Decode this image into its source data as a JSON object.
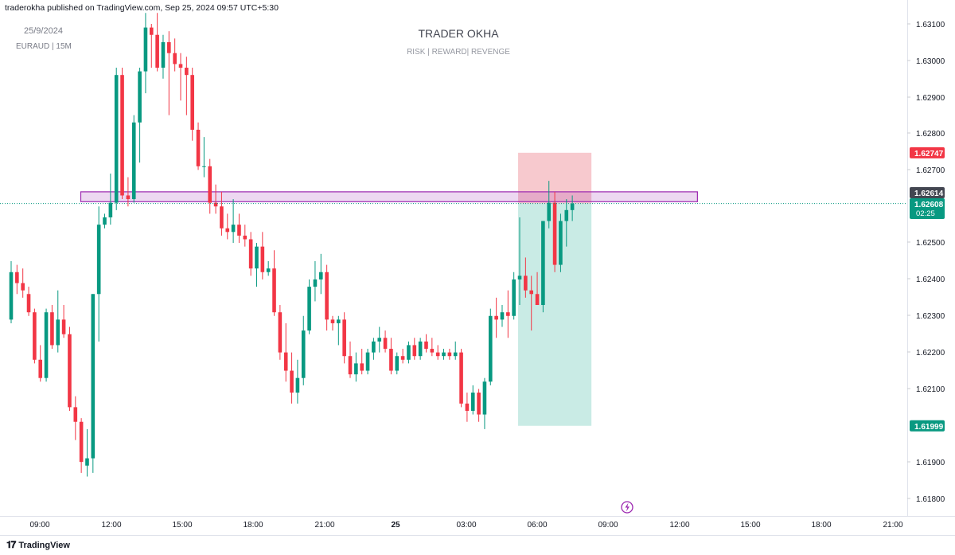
{
  "header": {
    "published_line": "traderokha published on TradingView.com, Sep 25, 2024 09:57 UTC+5:30"
  },
  "watermark": {
    "date": "25/9/2024",
    "symbol": "EURAUD | 15M",
    "title": "TRADER OKHA",
    "subtitle": "RISK | REWARD| REVENGE"
  },
  "footer": {
    "brand": "TradingView",
    "logo_icon": "tradingview-logo-icon"
  },
  "chart_data": {
    "type": "candlestick",
    "symbol": "EURAUD",
    "timeframe": "15M",
    "y_ticks": [
      "1.63100",
      "1.63000",
      "1.62900",
      "1.62800",
      "1.62700",
      "1.62500",
      "1.62400",
      "1.62300",
      "1.62200",
      "1.62100",
      "1.61900",
      "1.61800"
    ],
    "ylim": [
      1.6172,
      1.6313
    ],
    "x_ticks": [
      "09:00",
      "12:00",
      "15:00",
      "18:00",
      "21:00",
      "25",
      "03:00",
      "06:00",
      "09:00",
      "12:00",
      "15:00",
      "18:00",
      "21:00"
    ],
    "bar_interval_minutes": 15,
    "colors": {
      "up": "#089981",
      "down": "#f23645",
      "zone": "#9c27b0",
      "risk": "#f7c9ce",
      "reward": "#c9ebe5"
    },
    "price_labels": [
      {
        "text": "1.62747",
        "value": 1.62747,
        "color": "#f23645"
      },
      {
        "text": "1.62614",
        "value": 1.62614,
        "color": "#434651"
      },
      {
        "text": "1.62608",
        "value": 1.62608,
        "color": "#089981",
        "sub": "02:25"
      },
      {
        "text": "1.61999",
        "value": 1.61999,
        "color": "#089981"
      }
    ],
    "zone": {
      "top": 1.6264,
      "bottom": 1.62613,
      "start_bar": 13,
      "end_bar": 117
    },
    "position": {
      "type": "short",
      "entry": 1.62608,
      "stop": 1.62747,
      "target": 1.61999,
      "start_bar": 87,
      "end_bar": 99
    },
    "last_price": 1.62608,
    "candles": [
      [
        1.6229,
        1.6245,
        1.6228,
        1.6242
      ],
      [
        1.6242,
        1.6244,
        1.6236,
        1.6239
      ],
      [
        1.6239,
        1.6243,
        1.6235,
        1.6237
      ],
      [
        1.6236,
        1.6238,
        1.623,
        1.6231
      ],
      [
        1.6231,
        1.6232,
        1.6217,
        1.6218
      ],
      [
        1.6218,
        1.6222,
        1.6212,
        1.6213
      ],
      [
        1.6213,
        1.6232,
        1.6212,
        1.6231
      ],
      [
        1.6231,
        1.6233,
        1.6221,
        1.6222
      ],
      [
        1.6222,
        1.6237,
        1.622,
        1.6229
      ],
      [
        1.6229,
        1.6233,
        1.6224,
        1.6225
      ],
      [
        1.6225,
        1.6227,
        1.6204,
        1.6205
      ],
      [
        1.6205,
        1.6208,
        1.6196,
        1.6201
      ],
      [
        1.6201,
        1.6202,
        1.6187,
        1.619
      ],
      [
        1.6189,
        1.6199,
        1.6186,
        1.6191
      ],
      [
        1.6191,
        1.6236,
        1.6187,
        1.6236
      ],
      [
        1.6236,
        1.626,
        1.6223,
        1.6255
      ],
      [
        1.6255,
        1.6258,
        1.6254,
        1.6257
      ],
      [
        1.6257,
        1.6269,
        1.6255,
        1.6261
      ],
      [
        1.6261,
        1.6298,
        1.6259,
        1.6296
      ],
      [
        1.6296,
        1.6298,
        1.6262,
        1.6263
      ],
      [
        1.6263,
        1.6268,
        1.626,
        1.6262
      ],
      [
        1.6262,
        1.6285,
        1.6261,
        1.6283
      ],
      [
        1.6283,
        1.6298,
        1.6272,
        1.6297
      ],
      [
        1.6297,
        1.6313,
        1.6291,
        1.6309
      ],
      [
        1.6309,
        1.631,
        1.6298,
        1.6307
      ],
      [
        1.6307,
        1.6313,
        1.6297,
        1.6298
      ],
      [
        1.6298,
        1.6307,
        1.6295,
        1.6305
      ],
      [
        1.6305,
        1.6308,
        1.6285,
        1.6302
      ],
      [
        1.6302,
        1.6306,
        1.6297,
        1.6299
      ],
      [
        1.6299,
        1.6302,
        1.6289,
        1.6298
      ],
      [
        1.6298,
        1.6301,
        1.6285,
        1.6296
      ],
      [
        1.6296,
        1.6298,
        1.6278,
        1.6281
      ],
      [
        1.6281,
        1.6283,
        1.627,
        1.6271
      ],
      [
        1.6271,
        1.6279,
        1.6268,
        1.6271
      ],
      [
        1.6271,
        1.6273,
        1.6258,
        1.6261
      ],
      [
        1.6261,
        1.6266,
        1.6258,
        1.626
      ],
      [
        1.626,
        1.6264,
        1.6252,
        1.6254
      ],
      [
        1.6254,
        1.6258,
        1.6251,
        1.6253
      ],
      [
        1.6253,
        1.6262,
        1.625,
        1.6255
      ],
      [
        1.6255,
        1.6258,
        1.625,
        1.6252
      ],
      [
        1.6252,
        1.6255,
        1.6249,
        1.6251
      ],
      [
        1.6251,
        1.6253,
        1.6241,
        1.6243
      ],
      [
        1.6243,
        1.625,
        1.6238,
        1.6249
      ],
      [
        1.6249,
        1.6253,
        1.624,
        1.6242
      ],
      [
        1.6242,
        1.6245,
        1.6241,
        1.6243
      ],
      [
        1.6243,
        1.6248,
        1.623,
        1.6231
      ],
      [
        1.6231,
        1.6233,
        1.6218,
        1.622
      ],
      [
        1.622,
        1.6228,
        1.6212,
        1.6215
      ],
      [
        1.6215,
        1.622,
        1.6206,
        1.6209
      ],
      [
        1.6209,
        1.6218,
        1.6206,
        1.6213
      ],
      [
        1.6213,
        1.623,
        1.6211,
        1.6226
      ],
      [
        1.6226,
        1.624,
        1.6225,
        1.6238
      ],
      [
        1.6238,
        1.6245,
        1.6234,
        1.624
      ],
      [
        1.624,
        1.6247,
        1.6236,
        1.6242
      ],
      [
        1.6242,
        1.6244,
        1.6226,
        1.6229
      ],
      [
        1.6229,
        1.623,
        1.6226,
        1.6228
      ],
      [
        1.6228,
        1.623,
        1.6222,
        1.6229
      ],
      [
        1.6229,
        1.6231,
        1.6217,
        1.6219
      ],
      [
        1.6219,
        1.6223,
        1.6213,
        1.6214
      ],
      [
        1.6214,
        1.622,
        1.6212,
        1.6217
      ],
      [
        1.6217,
        1.6221,
        1.6214,
        1.6215
      ],
      [
        1.6215,
        1.6221,
        1.6214,
        1.622
      ],
      [
        1.622,
        1.6224,
        1.6218,
        1.6223
      ],
      [
        1.6223,
        1.6227,
        1.622,
        1.6224
      ],
      [
        1.6224,
        1.6226,
        1.622,
        1.6221
      ],
      [
        1.6221,
        1.6224,
        1.6214,
        1.6215
      ],
      [
        1.6215,
        1.622,
        1.6214,
        1.6219
      ],
      [
        1.6219,
        1.6221,
        1.6217,
        1.6218
      ],
      [
        1.6218,
        1.6223,
        1.6217,
        1.6222
      ],
      [
        1.6222,
        1.6224,
        1.6218,
        1.6219
      ],
      [
        1.6219,
        1.6224,
        1.6218,
        1.6223
      ],
      [
        1.6223,
        1.6225,
        1.622,
        1.6221
      ],
      [
        1.6221,
        1.6224,
        1.6219,
        1.622
      ],
      [
        1.622,
        1.6222,
        1.6218,
        1.6219
      ],
      [
        1.6219,
        1.6221,
        1.6218,
        1.622
      ],
      [
        1.622,
        1.6221,
        1.6218,
        1.6219
      ],
      [
        1.6219,
        1.6223,
        1.6218,
        1.622
      ],
      [
        1.622,
        1.6221,
        1.6205,
        1.6206
      ],
      [
        1.6206,
        1.6209,
        1.6201,
        1.6204
      ],
      [
        1.6204,
        1.6211,
        1.6203,
        1.6209
      ],
      [
        1.6209,
        1.621,
        1.6201,
        1.6203
      ],
      [
        1.6203,
        1.6213,
        1.6199,
        1.6212
      ],
      [
        1.6212,
        1.6232,
        1.6211,
        1.623
      ],
      [
        1.623,
        1.6235,
        1.6224,
        1.6229
      ],
      [
        1.6229,
        1.6233,
        1.6227,
        1.6231
      ],
      [
        1.6231,
        1.6237,
        1.6224,
        1.623
      ],
      [
        1.623,
        1.6242,
        1.6229,
        1.624
      ],
      [
        1.624,
        1.6257,
        1.6233,
        1.6241
      ],
      [
        1.6241,
        1.6246,
        1.6235,
        1.6237
      ],
      [
        1.6237,
        1.6241,
        1.6226,
        1.6236
      ],
      [
        1.6236,
        1.6242,
        1.6233,
        1.6233
      ],
      [
        1.6233,
        1.6256,
        1.6231,
        1.6256
      ],
      [
        1.6256,
        1.6267,
        1.6254,
        1.6261
      ],
      [
        1.6261,
        1.6264,
        1.6242,
        1.6244
      ],
      [
        1.6244,
        1.6258,
        1.6242,
        1.6256
      ],
      [
        1.6256,
        1.6262,
        1.6249,
        1.6259
      ],
      [
        1.6259,
        1.6263,
        1.6256,
        1.62608
      ]
    ]
  }
}
